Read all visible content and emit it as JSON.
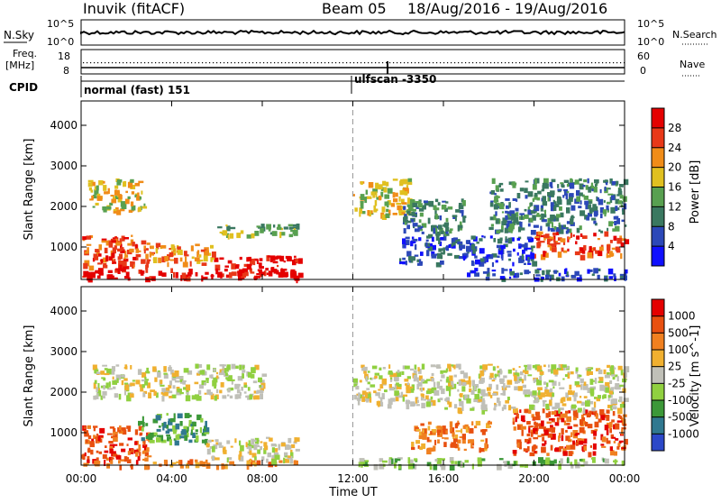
{
  "header": {
    "station": "Inuvik (fitACF)",
    "beam": "Beam 05",
    "date_range": "18/Aug/2016 - 19/Aug/2016"
  },
  "status_panels": {
    "nsky_label": "N.Sky",
    "nsky_ticks": [
      "10^5",
      "10^0"
    ],
    "nsearch_label": "N.Search",
    "freq_label_1": "Freq.",
    "freq_label_2": "[MHz]",
    "freq_ticks": [
      "18",
      "8"
    ],
    "nave_label": "Nave",
    "nave_ticks": [
      "60",
      "0"
    ],
    "cpid_label": "CPID",
    "cpid_1": "normal (fast) 151",
    "cpid_2": "ulfscan -3350"
  },
  "x_axis": {
    "label": "Time UT",
    "ticks": [
      "00:00",
      "04:00",
      "08:00",
      "12:00",
      "16:00",
      "20:00",
      "00:00"
    ]
  },
  "chart_data": [
    {
      "type": "heatmap",
      "panel": "power",
      "ylabel": "Slant Range [km]",
      "yticks": [
        1000,
        2000,
        3000,
        4000
      ],
      "ylim": [
        200,
        4600
      ],
      "xlim_hours": [
        0,
        24
      ],
      "colorbar": {
        "label": "Power [dB]",
        "ticks": [
          "4",
          "8",
          "12",
          "16",
          "20",
          "24",
          "28"
        ],
        "colors": [
          "#1010ff",
          "#2c48b8",
          "#3a7860",
          "#58a050",
          "#e0c020",
          "#f08c18",
          "#e83818",
          "#e40000"
        ]
      },
      "regions": [
        {
          "t": [
            0.0,
            9.6
          ],
          "r": [
            250,
            480
          ],
          "level": 7
        },
        {
          "t": [
            0.0,
            3.0
          ],
          "r": [
            480,
            1300
          ],
          "level": 6
        },
        {
          "t": [
            5.8,
            9.6
          ],
          "r": [
            350,
            800
          ],
          "level": 7
        },
        {
          "t": [
            3.0,
            5.8
          ],
          "r": [
            600,
            1100
          ],
          "level": 5
        },
        {
          "t": [
            0.3,
            2.8
          ],
          "r": [
            1900,
            2700
          ],
          "level": 4
        },
        {
          "t": [
            6.0,
            9.5
          ],
          "r": [
            1300,
            1600
          ],
          "level": 3
        },
        {
          "t": [
            12.0,
            14.5
          ],
          "r": [
            1800,
            2700
          ],
          "level": 4
        },
        {
          "t": [
            14.2,
            17.0
          ],
          "r": [
            1300,
            2200
          ],
          "level": 2
        },
        {
          "t": [
            17.0,
            24.0
          ],
          "r": [
            250,
            500
          ],
          "level": 1
        },
        {
          "t": [
            20.0,
            24.0
          ],
          "r": [
            800,
            1400
          ],
          "level": 6
        },
        {
          "t": [
            18.0,
            24.0
          ],
          "r": [
            1400,
            2700
          ],
          "level": 2
        },
        {
          "t": [
            14.0,
            20.0
          ],
          "r": [
            600,
            1300
          ],
          "level": 1
        }
      ]
    },
    {
      "type": "heatmap",
      "panel": "velocity",
      "ylabel": "Slant Range [km]",
      "yticks": [
        1000,
        2000,
        3000,
        4000
      ],
      "ylim": [
        200,
        4600
      ],
      "xlim_hours": [
        0,
        24
      ],
      "colorbar": {
        "label": "Velocity [m s^-1]",
        "ticks": [
          "1000",
          "500",
          "100",
          "25",
          "-25",
          "-100",
          "-500",
          "-1000"
        ],
        "colors": [
          "#2c48c8",
          "#307890",
          "#3c9838",
          "#90d040",
          "#c0c0b8",
          "#f0b030",
          "#f08020",
          "#e85010",
          "#e40000"
        ]
      },
      "regions": [
        {
          "t": [
            0.0,
            3.0
          ],
          "r": [
            300,
            1200
          ],
          "level": 7
        },
        {
          "t": [
            0.0,
            9.6
          ],
          "r": [
            200,
            350
          ],
          "level": 6
        },
        {
          "t": [
            2.5,
            5.5
          ],
          "r": [
            800,
            1500
          ],
          "level": 2
        },
        {
          "t": [
            5.5,
            9.5
          ],
          "r": [
            350,
            900
          ],
          "level": 4
        },
        {
          "t": [
            0.5,
            8.0
          ],
          "r": [
            1900,
            2700
          ],
          "level": 4
        },
        {
          "t": [
            12.0,
            16.0
          ],
          "r": [
            1700,
            2700
          ],
          "level": 4
        },
        {
          "t": [
            14.5,
            18.0
          ],
          "r": [
            600,
            1300
          ],
          "level": 6
        },
        {
          "t": [
            19.0,
            24.0
          ],
          "r": [
            500,
            1600
          ],
          "level": 7
        },
        {
          "t": [
            16.0,
            24.0
          ],
          "r": [
            1600,
            2700
          ],
          "level": 4
        },
        {
          "t": [
            12.0,
            24.0
          ],
          "r": [
            200,
            400
          ],
          "level": 3
        }
      ]
    }
  ]
}
